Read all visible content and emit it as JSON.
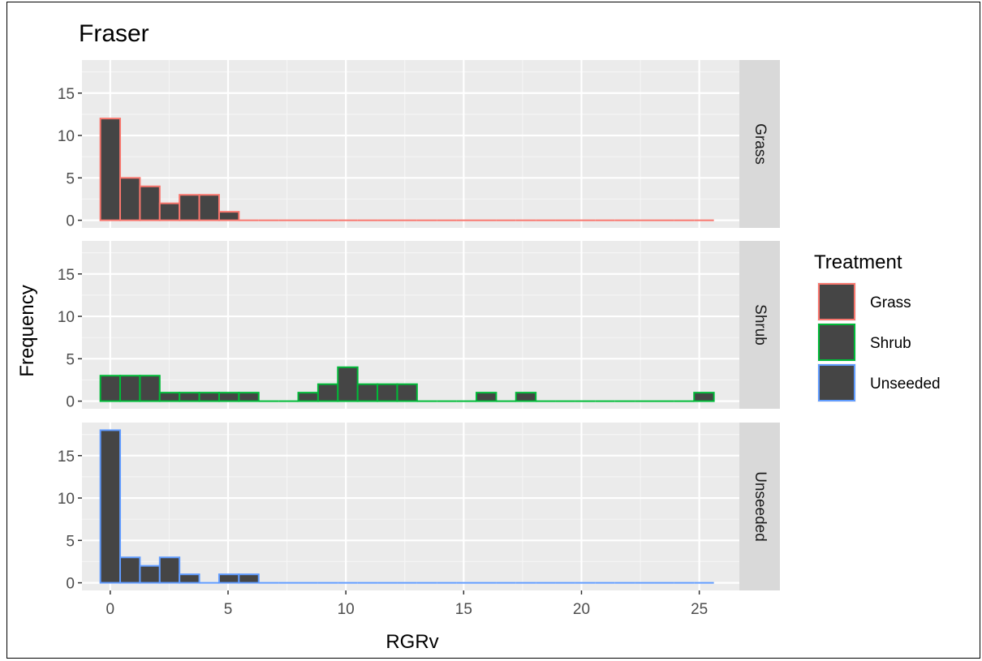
{
  "chart_data": {
    "type": "bar",
    "title": "Fraser",
    "xlabel": "RGRv",
    "ylabel": "Frequency",
    "xlim": [
      -1.2,
      26.7
    ],
    "ylim": [
      -0.9,
      18.9
    ],
    "x_ticks": [
      0,
      5,
      10,
      15,
      20,
      25
    ],
    "y_ticks": [
      0,
      5,
      10,
      15
    ],
    "bin_width": 0.84,
    "bin_centers": [
      0,
      0.84,
      1.68,
      2.52,
      3.36,
      4.2,
      5.04,
      5.88,
      6.72,
      7.56,
      8.4,
      9.24,
      10.08,
      10.92,
      11.76,
      12.6,
      13.44,
      14.28,
      15.12,
      15.96,
      16.8,
      17.64,
      18.48,
      19.32,
      20.16,
      21.0,
      21.84,
      22.68,
      23.52,
      24.36,
      25.2
    ],
    "grid": true,
    "legend_position": "right",
    "legend_title": "Treatment",
    "panels": [
      {
        "name": "Grass",
        "color": "#F8766D",
        "fill": "#454545",
        "values": [
          12,
          5,
          4,
          2,
          3,
          3,
          1,
          0,
          0,
          0,
          0,
          0,
          0,
          0,
          0,
          0,
          0,
          0,
          0,
          0,
          0,
          0,
          0,
          0,
          0,
          0,
          0,
          0,
          0,
          0,
          0
        ]
      },
      {
        "name": "Shrub",
        "color": "#00BA38",
        "fill": "#454545",
        "values": [
          3,
          3,
          3,
          1,
          1,
          1,
          1,
          1,
          0,
          0,
          1,
          2,
          4,
          2,
          2,
          2,
          0,
          0,
          0,
          1,
          0,
          1,
          0,
          0,
          0,
          0,
          0,
          0,
          0,
          0,
          1
        ]
      },
      {
        "name": "Unseeded",
        "color": "#619CFF",
        "fill": "#454545",
        "values": [
          18,
          3,
          2,
          3,
          1,
          0,
          1,
          1,
          0,
          0,
          0,
          0,
          0,
          0,
          0,
          0,
          0,
          0,
          0,
          0,
          0,
          0,
          0,
          0,
          0,
          0,
          0,
          0,
          0,
          0,
          0
        ]
      }
    ]
  }
}
